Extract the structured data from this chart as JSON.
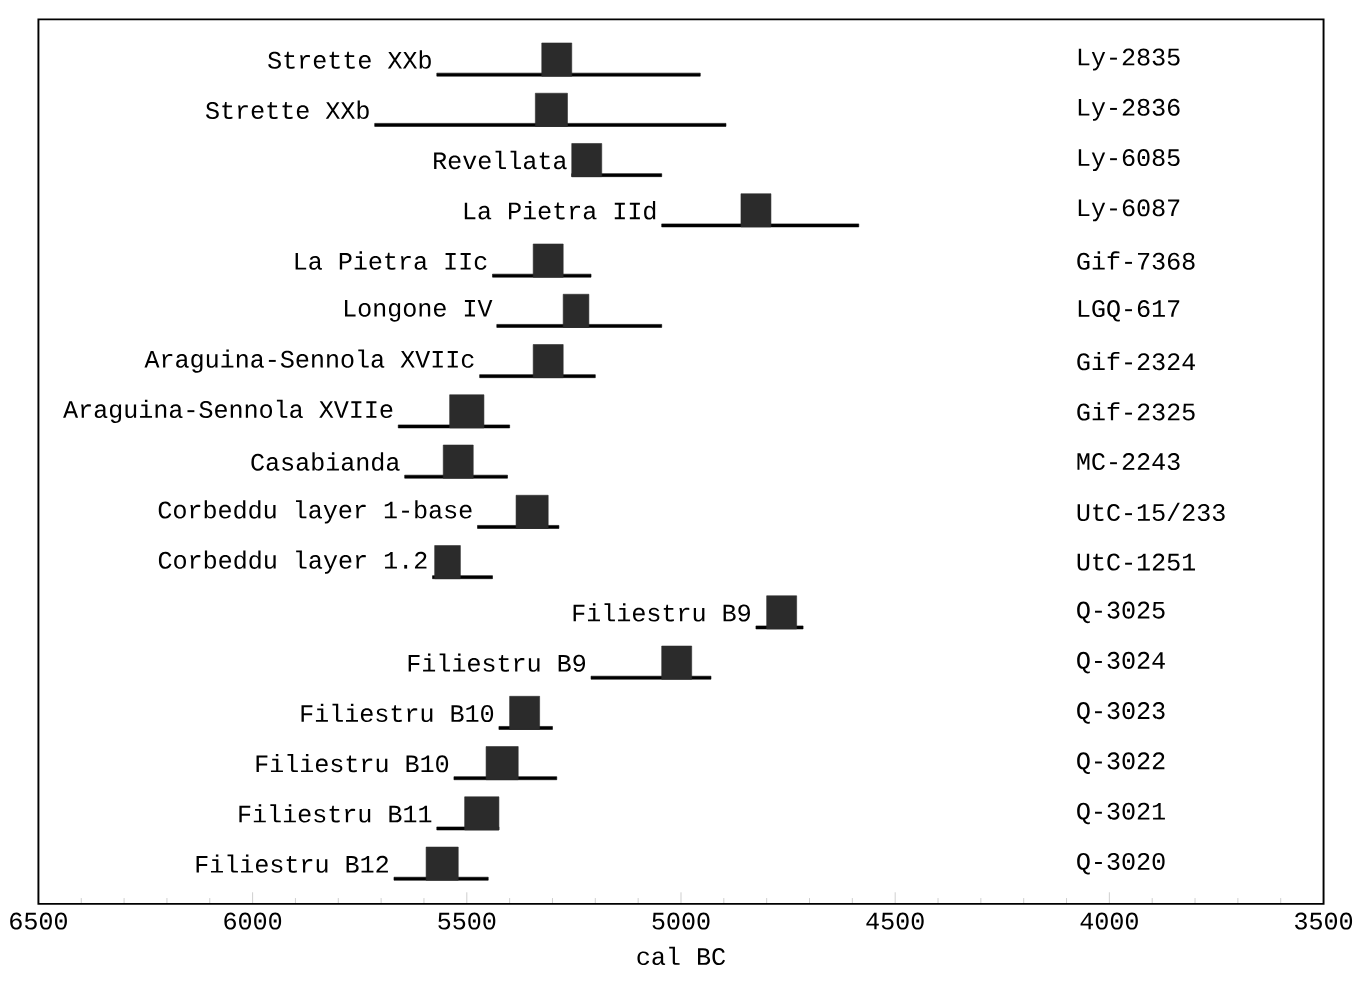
{
  "chart_data": {
    "type": "bar",
    "orientation": "horizontal",
    "xlabel": "cal BC",
    "categories": [
      "Strette XXb",
      "Strette XXb",
      "Revellata",
      "La Pietra IId",
      "La Pietra IIc",
      "Longone IV",
      "Araguina-Sennola XVIIc",
      "Araguina-Sennola XVIIe",
      "Casabianda",
      "Corbeddu layer 1-base",
      "Corbeddu layer 1.2",
      "Filiestru B9",
      "Filiestru B9",
      "Filiestru B10",
      "Filiestru B10",
      "Filiestru B11",
      "Filiestru B12"
    ],
    "series": [
      {
        "color": "#000000",
        "base": [
          5570,
          5715,
          5255,
          5045,
          5440,
          5430,
          5470,
          5660,
          5645,
          5475,
          5580,
          4825,
          5210,
          5425,
          5530,
          5570,
          5670
        ],
        "values": [
          -615,
          -820,
          -210,
          -460,
          -230,
          -385,
          -270,
          -260,
          -240,
          -190,
          -140,
          -110,
          -280,
          -125,
          -240,
          -145,
          -220
        ]
      },
      {
        "color": "#2b2b2b",
        "base": [
          5325,
          5340,
          5255,
          4860,
          5345,
          5275,
          5345,
          5540,
          5555,
          5385,
          5575,
          4800,
          5045,
          5400,
          5455,
          5505,
          5595
        ],
        "values": [
          -70,
          -75,
          -70,
          -70,
          -70,
          -60,
          -70,
          -80,
          -70,
          -75,
          -60,
          -70,
          -70,
          -70,
          -75,
          -80,
          -75
        ]
      }
    ],
    "annotations": [
      "Ly-2835",
      "Ly-2836",
      "Ly-6085",
      "Ly-6087",
      "Gif-7368",
      "LGQ-617",
      "Gif-2324",
      "Gif-2325",
      "MC-2243",
      "UtC-15/233",
      "UtC-1251",
      "Q-3025",
      "Q-3024",
      "Q-3023",
      "Q-3022",
      "Q-3021",
      "Q-3020"
    ],
    "xlim": [
      6500,
      3500
    ],
    "xticks": [
      6500,
      6000,
      5500,
      5000,
      4500,
      4000,
      3500
    ]
  }
}
